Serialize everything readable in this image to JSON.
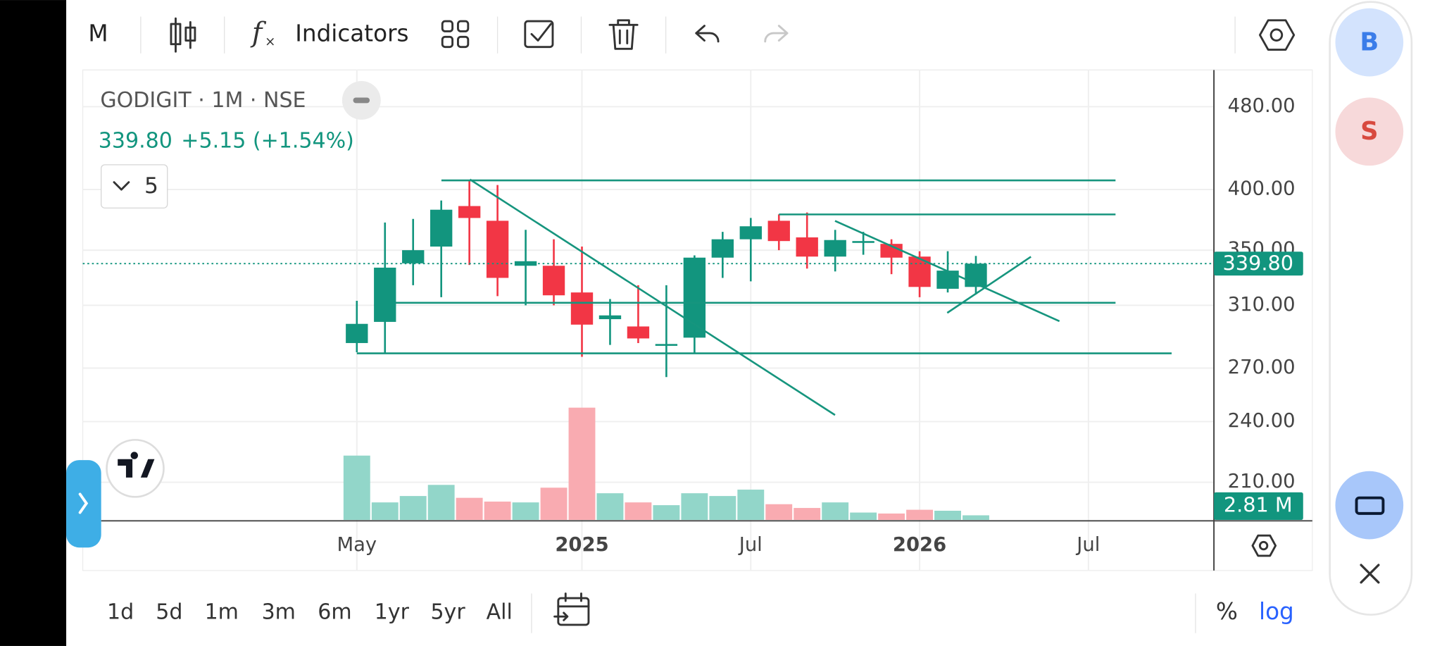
{
  "toolbar": {
    "interval": "M",
    "indicators": "Indicators"
  },
  "legend": {
    "symbol": "GODIGIT · 1M · NSE",
    "price": "339.80",
    "change": "+5.15 (+1.54%)",
    "studies": "5"
  },
  "chart_data": {
    "type": "candlestick",
    "x": [
      0,
      1,
      2,
      3,
      4,
      5,
      6,
      7,
      8,
      9,
      10,
      11,
      12,
      13,
      14,
      15,
      16,
      17,
      18,
      19,
      20,
      21,
      22
    ],
    "open": [
      285.3,
      298.9,
      340.0,
      352.8,
      385.7,
      373.4,
      338.2,
      338.2,
      318.9,
      300.7,
      295.9,
      284.1,
      288.7,
      344.3,
      358.5,
      373.4,
      360.0,
      345.1,
      356.4,
      354.9,
      345.1,
      321.5,
      322.8
    ],
    "high": [
      313.1,
      372.0,
      374.9,
      390.4,
      408.0,
      404.0,
      366.0,
      358.5,
      352.8,
      314.3,
      324.0,
      324.0,
      346.0,
      364.4,
      375.7,
      378.7,
      380.3,
      366.0,
      364.4,
      358.5,
      349.2,
      349.2,
      345.6
    ],
    "low": [
      279.6,
      278.5,
      324.0,
      315.6,
      338.8,
      316.3,
      310.0,
      310.0,
      276.8,
      284.1,
      285.3,
      264.7,
      278.5,
      329.3,
      326.8,
      350.0,
      336.1,
      334.0,
      346.5,
      332.0,
      315.6,
      318.9,
      317.5
    ],
    "close": [
      297.6,
      336.8,
      350.0,
      382.6,
      375.7,
      329.3,
      341.6,
      316.9,
      297.1,
      303.2,
      288.2,
      284.7,
      344.3,
      358.5,
      368.9,
      357.1,
      345.1,
      357.9,
      357.1,
      344.3,
      322.8,
      334.6,
      339.8
    ],
    "volume": [
      39.3,
      10.7,
      14.6,
      21.4,
      13.5,
      11.2,
      10.7,
      19.7,
      68.6,
      16.3,
      10.7,
      9.0,
      16.3,
      14.6,
      18.5,
      9.6,
      7.3,
      10.7,
      4.5,
      3.9,
      6.2,
      5.6,
      2.81
    ],
    "up_color": "#12957e",
    "down_color": "#f23645",
    "volume_up_color": "#92d6c9",
    "volume_down_color": "#f9abb1",
    "log_scale": true,
    "grid": true,
    "ylim": [
      193.3,
      520.4
    ],
    "yticks": [
      {
        "value": 210,
        "label": "210.00"
      },
      {
        "value": 240,
        "label": "240.00"
      },
      {
        "value": 270,
        "label": "270.00"
      },
      {
        "value": 310,
        "label": "310.00"
      },
      {
        "value": 350,
        "label": "350.00"
      },
      {
        "value": 400,
        "label": "400.00"
      },
      {
        "value": 480,
        "label": "480.00"
      }
    ],
    "xlim": [
      -9.74,
      30.46
    ],
    "xticks": [
      {
        "value": 0,
        "label": "May"
      },
      {
        "value": 8,
        "label": "2025"
      },
      {
        "value": 14,
        "label": "Jul"
      },
      {
        "value": 20,
        "label": "2026"
      },
      {
        "value": 26,
        "label": "Jul"
      }
    ],
    "last_price_label": "339.80",
    "last_volume_label": "2.81 M"
  },
  "range_buttons": [
    "1d",
    "5d",
    "1m",
    "3m",
    "6m",
    "1yr",
    "5yr",
    "All"
  ],
  "scale_buttons": {
    "percent": "%",
    "log": "log"
  },
  "side_panel": {
    "first": "B",
    "second": "S"
  }
}
